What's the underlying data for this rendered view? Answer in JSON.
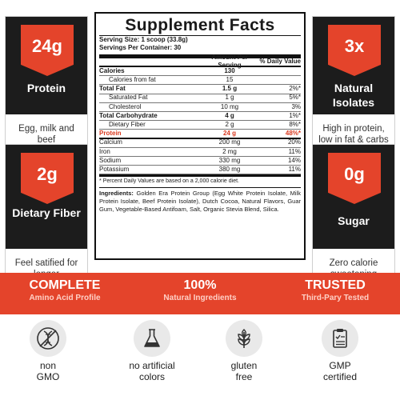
{
  "cards": [
    {
      "value": "24g",
      "title": "Protein",
      "desc": "Egg, milk and beef"
    },
    {
      "value": "2g",
      "title": "Dietary Fiber",
      "desc": "Feel satified for longer"
    },
    {
      "value": "3x",
      "title": "Natural Isolates",
      "desc": "High in protein, low in fat & carbs"
    },
    {
      "value": "0g",
      "title": "Sugar",
      "desc": "Zero calorie sweetening"
    }
  ],
  "facts": {
    "title": "Supplement Facts",
    "serving_size": "Serving Size: 1 scoop (33.8g)",
    "servings_per_container": "Servings Per Container: 30",
    "header": {
      "amount": "Amount Per Serving",
      "dv": "% Daily Value"
    },
    "rows": [
      {
        "name": "Calories",
        "amount": "130",
        "dv": ""
      },
      {
        "name": "Calories from fat",
        "amount": "15",
        "dv": ""
      },
      {
        "name": "Total Fat",
        "amount": "1.5 g",
        "dv": "2%*"
      },
      {
        "name": "Saturated Fat",
        "amount": "1 g",
        "dv": "5%*"
      },
      {
        "name": "Cholesterol",
        "amount": "10 mg",
        "dv": "3%"
      },
      {
        "name": "Total Carbohydrate",
        "amount": "4 g",
        "dv": "1%*"
      },
      {
        "name": "Dietary Fiber",
        "amount": "2 g",
        "dv": "8%*"
      },
      {
        "name": "Protein",
        "amount": "24 g",
        "dv": "48%*"
      },
      {
        "name": "Calcium",
        "amount": "200 mg",
        "dv": "20%"
      },
      {
        "name": "Iron",
        "amount": "2 mg",
        "dv": "11%"
      },
      {
        "name": "Sodium",
        "amount": "330 mg",
        "dv": "14%"
      },
      {
        "name": "Potassium",
        "amount": "380 mg",
        "dv": "11%"
      }
    ],
    "note": "* Percent Daily Values are based on a 2,000 calorie diet.",
    "ingredients_label": "Ingredients:",
    "ingredients": "Golden Era Protein Group (Egg White Protein Isolate, Milk Protein Isolate, Beef Protein Isolate), Dutch Cocoa, Natural Flavors, Guar Gum, Vegetable-Based Antifoam, Salt, Organic Stevia Blend, Silica."
  },
  "band": [
    {
      "head": "COMPLETE",
      "sub": "Amino Acid Profile"
    },
    {
      "head": "100%",
      "sub": "Natural Ingredients"
    },
    {
      "head": "TRUSTED",
      "sub": "Third-Pary Tested"
    }
  ],
  "icons": [
    {
      "icon": "dna-icon",
      "label1": "non",
      "label2": "GMO"
    },
    {
      "icon": "flask-icon",
      "label1": "no artificial",
      "label2": "colors"
    },
    {
      "icon": "wheat-icon",
      "label1": "gluten",
      "label2": "free"
    },
    {
      "icon": "clipboard-check-icon",
      "label1": "GMP",
      "label2": "certified"
    }
  ],
  "colors": {
    "accent": "#e4442b",
    "dark": "#1c1c1c",
    "icon_bg": "#e9e9e9"
  }
}
